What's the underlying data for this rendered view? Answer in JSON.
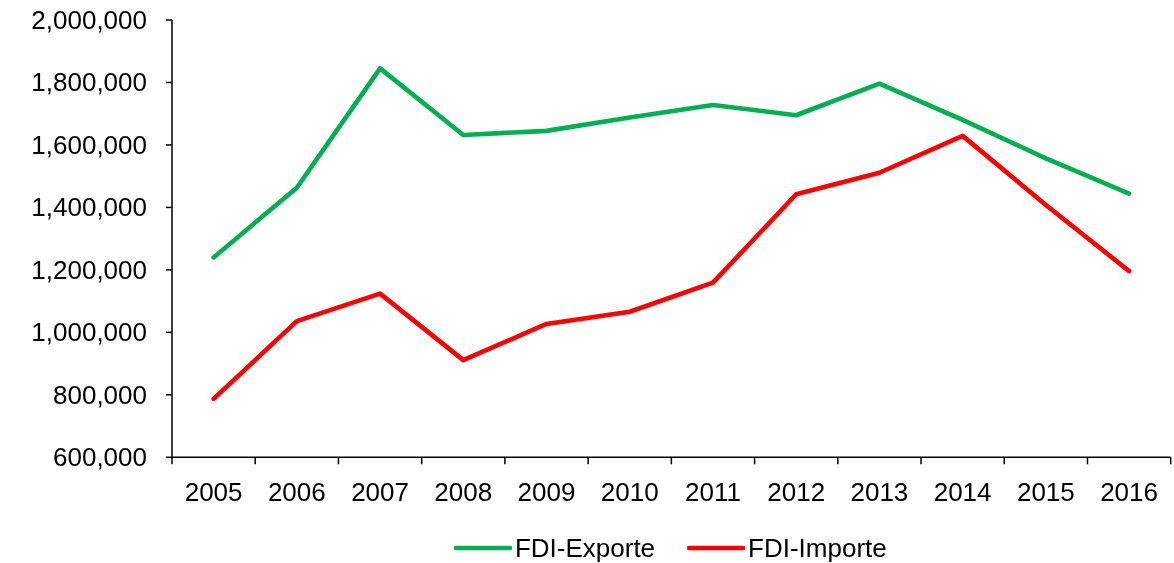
{
  "chart_data": {
    "type": "line",
    "categories": [
      "2005",
      "2006",
      "2007",
      "2008",
      "2009",
      "2010",
      "2011",
      "2012",
      "2013",
      "2014",
      "2015",
      "2016"
    ],
    "series": [
      {
        "name": "FDI-Exporte",
        "color": "#00b050",
        "values": [
          1240000,
          1463000,
          1845000,
          1632000,
          1645000,
          1688000,
          1728000,
          1695000,
          1796000,
          1680000,
          1557000,
          1444000
        ]
      },
      {
        "name": "FDI-Importe",
        "color": "#ff0000",
        "values": [
          787000,
          1036000,
          1124000,
          911000,
          1027000,
          1066000,
          1159000,
          1442000,
          1511000,
          1629000,
          1408000,
          1196000
        ]
      }
    ],
    "ylim": [
      600000,
      2000000
    ],
    "yticks": [
      {
        "value": 600000,
        "label": "600,000"
      },
      {
        "value": 800000,
        "label": "800,000"
      },
      {
        "value": 1000000,
        "label": "1,000,000"
      },
      {
        "value": 1200000,
        "label": "1,200,000"
      },
      {
        "value": 1400000,
        "label": "1,400,000"
      },
      {
        "value": 1600000,
        "label": "1,600,000"
      },
      {
        "value": 1800000,
        "label": "1,800,000"
      },
      {
        "value": 2000000,
        "label": "2,000,000"
      }
    ],
    "legend": "bottom",
    "line_style": "solid"
  }
}
